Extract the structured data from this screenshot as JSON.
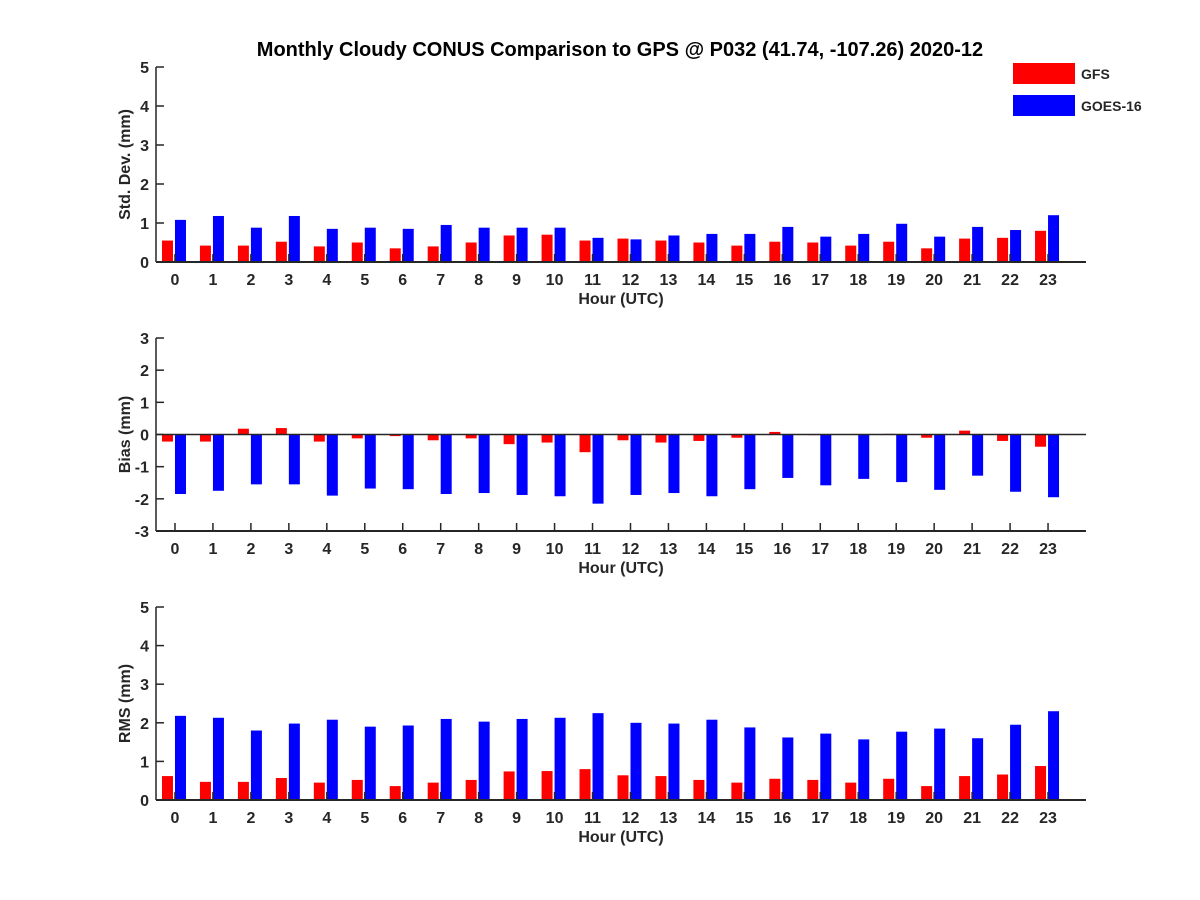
{
  "figure": {
    "title": "Monthly Cloudy CONUS Comparison to GPS @ P032 (41.74, -107.26) 2020-12"
  },
  "legend": {
    "placement": "top-right",
    "items": [
      {
        "label": "GFS",
        "color": "#ff0000"
      },
      {
        "label": "GOES-16",
        "color": "#0000ff"
      }
    ]
  },
  "chart_data": [
    {
      "type": "bar",
      "xlabel": "Hour (UTC)",
      "ylabel": "Std. Dev. (mm)",
      "ylim": [
        0,
        5
      ],
      "yticks": [
        0,
        1,
        2,
        3,
        4,
        5
      ],
      "categories": [
        "0",
        "1",
        "2",
        "3",
        "4",
        "5",
        "6",
        "7",
        "8",
        "9",
        "10",
        "11",
        "12",
        "13",
        "14",
        "15",
        "16",
        "17",
        "18",
        "19",
        "20",
        "21",
        "22",
        "23"
      ],
      "series": [
        {
          "name": "GFS",
          "color": "#ff0000",
          "values": [
            0.55,
            0.42,
            0.42,
            0.52,
            0.4,
            0.5,
            0.35,
            0.4,
            0.5,
            0.68,
            0.7,
            0.55,
            0.6,
            0.55,
            0.5,
            0.42,
            0.52,
            0.5,
            0.42,
            0.52,
            0.35,
            0.6,
            0.62,
            0.8
          ]
        },
        {
          "name": "GOES-16",
          "color": "#0000ff",
          "values": [
            1.08,
            1.18,
            0.88,
            1.18,
            0.85,
            0.88,
            0.85,
            0.95,
            0.88,
            0.88,
            0.88,
            0.62,
            0.58,
            0.68,
            0.72,
            0.72,
            0.9,
            0.65,
            0.72,
            0.98,
            0.65,
            0.9,
            0.82,
            1.2
          ]
        }
      ]
    },
    {
      "type": "bar",
      "xlabel": "Hour (UTC)",
      "ylabel": "Bias (mm)",
      "ylim": [
        -3,
        3
      ],
      "yticks": [
        -3,
        -2,
        -1,
        0,
        1,
        2,
        3
      ],
      "categories": [
        "0",
        "1",
        "2",
        "3",
        "4",
        "5",
        "6",
        "7",
        "8",
        "9",
        "10",
        "11",
        "12",
        "13",
        "14",
        "15",
        "16",
        "17",
        "18",
        "19",
        "20",
        "21",
        "22",
        "23"
      ],
      "series": [
        {
          "name": "GFS",
          "color": "#ff0000",
          "values": [
            -0.22,
            -0.22,
            0.18,
            0.2,
            -0.22,
            -0.12,
            -0.05,
            -0.18,
            -0.12,
            -0.3,
            -0.25,
            -0.55,
            -0.18,
            -0.25,
            -0.2,
            -0.1,
            0.08,
            -0.02,
            0.0,
            0.02,
            -0.1,
            0.12,
            -0.2,
            -0.38
          ]
        },
        {
          "name": "GOES-16",
          "color": "#0000ff",
          "values": [
            -1.85,
            -1.75,
            -1.55,
            -1.55,
            -1.9,
            -1.68,
            -1.7,
            -1.85,
            -1.82,
            -1.88,
            -1.92,
            -2.15,
            -1.88,
            -1.82,
            -1.92,
            -1.7,
            -1.35,
            -1.58,
            -1.38,
            -1.48,
            -1.72,
            -1.28,
            -1.78,
            -1.95
          ]
        }
      ]
    },
    {
      "type": "bar",
      "xlabel": "Hour (UTC)",
      "ylabel": "RMS (mm)",
      "ylim": [
        0,
        5
      ],
      "yticks": [
        0,
        1,
        2,
        3,
        4,
        5
      ],
      "categories": [
        "0",
        "1",
        "2",
        "3",
        "4",
        "5",
        "6",
        "7",
        "8",
        "9",
        "10",
        "11",
        "12",
        "13",
        "14",
        "15",
        "16",
        "17",
        "18",
        "19",
        "20",
        "21",
        "22",
        "23"
      ],
      "series": [
        {
          "name": "GFS",
          "color": "#ff0000",
          "values": [
            0.62,
            0.47,
            0.47,
            0.57,
            0.45,
            0.52,
            0.36,
            0.45,
            0.52,
            0.74,
            0.75,
            0.8,
            0.64,
            0.62,
            0.52,
            0.45,
            0.55,
            0.52,
            0.45,
            0.55,
            0.36,
            0.62,
            0.66,
            0.88
          ]
        },
        {
          "name": "GOES-16",
          "color": "#0000ff",
          "values": [
            2.18,
            2.13,
            1.8,
            1.98,
            2.08,
            1.9,
            1.93,
            2.1,
            2.03,
            2.1,
            2.13,
            2.25,
            2.0,
            1.98,
            2.08,
            1.88,
            1.62,
            1.72,
            1.57,
            1.77,
            1.85,
            1.6,
            1.95,
            2.3
          ]
        }
      ]
    }
  ]
}
